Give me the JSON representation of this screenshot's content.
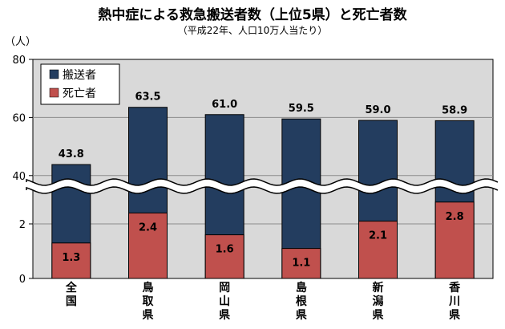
{
  "title": "熱中症による救急搬送者数（上位5県）と死亡者数",
  "subtitle": "（平成22年、人口10万人当たり）",
  "colors": {
    "transport": "#233d5f",
    "death": "#c0504d",
    "plot_bg": "#d9d9d9"
  },
  "chart_data": {
    "type": "bar",
    "title": "熱中症による救急搬送者数（上位5県）と死亡者数",
    "subtitle": "（平成22年、人口10万人当たり）",
    "ylabel": "（人）",
    "categories": [
      "全国",
      "鳥取県",
      "岡山県",
      "島根県",
      "新潟県",
      "香川県"
    ],
    "series": [
      {
        "name": "搬送者",
        "values": [
          43.8,
          63.5,
          61.0,
          59.5,
          59.0,
          58.9
        ]
      },
      {
        "name": "死亡者",
        "values": [
          1.3,
          2.4,
          1.6,
          1.1,
          2.1,
          2.8
        ]
      }
    ],
    "value_labels": {
      "搬送者": [
        "43.8",
        "63.5",
        "61.0",
        "59.5",
        "59.0",
        "58.9"
      ],
      "死亡者": [
        "1.3",
        "2.4",
        "1.6",
        "1.1",
        "2.1",
        "2.8"
      ]
    },
    "axis_break": true,
    "lower_scale": {
      "ylim": [
        0,
        4
      ],
      "ticks": [
        0,
        2
      ]
    },
    "upper_scale": {
      "ylim": [
        30,
        80
      ],
      "ticks": [
        40,
        60,
        80
      ]
    },
    "grid": true,
    "legend_position": "top-left"
  }
}
